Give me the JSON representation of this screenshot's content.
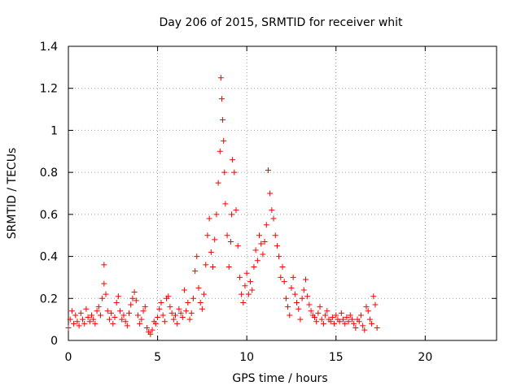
{
  "chart_data": {
    "type": "scatter",
    "title": "Day 206 of 2015, SRMTID for receiver whit",
    "xlabel": "GPS time / hours",
    "ylabel": "SRMTID / TECUs",
    "xlim": [
      0,
      24
    ],
    "ylim": [
      0,
      1.4
    ],
    "xticks": [
      0,
      5,
      10,
      15,
      20
    ],
    "xtick_labels": [
      "0",
      "5",
      "10",
      "15",
      "20"
    ],
    "yticks": [
      0,
      0.2,
      0.4,
      0.6,
      0.8,
      1.0,
      1.2,
      1.4
    ],
    "ytick_labels": [
      "0",
      "0.2",
      "0.4",
      "0.6",
      "0.8",
      "1",
      "1.2",
      "1.4"
    ],
    "grid": true,
    "marker": "+",
    "series": [
      {
        "name": "SRMTID",
        "color": "#ff0000",
        "x": [
          0.0,
          0.1,
          0.2,
          0.3,
          0.4,
          0.5,
          0.6,
          0.7,
          0.8,
          0.9,
          1.0,
          1.1,
          1.2,
          1.3,
          1.4,
          1.5,
          1.6,
          1.7,
          1.8,
          1.9,
          2.0,
          2.0,
          2.1,
          2.2,
          2.3,
          2.4,
          2.5,
          2.6,
          2.7,
          2.8,
          2.9,
          3.0,
          3.1,
          3.2,
          3.3,
          3.4,
          3.5,
          3.6,
          3.7,
          3.8,
          3.9,
          4.0,
          4.1,
          4.2,
          4.3,
          4.4,
          4.5,
          4.6,
          4.7,
          4.8,
          4.9,
          5.0,
          5.1,
          5.2,
          5.3,
          5.4,
          5.5,
          5.6,
          5.7,
          5.8,
          5.9,
          6.0,
          6.1,
          6.2,
          6.3,
          6.4,
          6.5,
          6.6,
          6.7,
          6.8,
          6.9,
          7.0,
          7.1,
          7.2,
          7.3,
          7.4,
          7.5,
          7.6,
          7.7,
          7.8,
          7.9,
          8.0,
          8.1,
          8.2,
          8.3,
          8.4,
          8.5,
          8.55,
          8.6,
          8.65,
          8.7,
          8.75,
          8.8,
          8.9,
          9.0,
          9.1,
          9.15,
          9.2,
          9.3,
          9.4,
          9.5,
          9.6,
          9.7,
          9.8,
          9.9,
          10.0,
          10.1,
          10.2,
          10.3,
          10.4,
          10.5,
          10.6,
          10.7,
          10.8,
          10.9,
          11.0,
          11.1,
          11.2,
          11.3,
          11.4,
          11.5,
          11.6,
          11.7,
          11.8,
          11.9,
          12.0,
          12.1,
          12.2,
          12.3,
          12.4,
          12.5,
          12.6,
          12.7,
          12.8,
          12.9,
          13.0,
          13.1,
          13.2,
          13.3,
          13.4,
          13.5,
          13.6,
          13.7,
          13.8,
          13.9,
          14.0,
          14.1,
          14.2,
          14.3,
          14.4,
          14.5,
          14.6,
          14.7,
          14.8,
          14.9,
          15.0,
          15.1,
          15.2,
          15.3,
          15.4,
          15.5,
          15.6,
          15.7,
          15.8,
          15.9,
          16.0,
          16.1,
          16.2,
          16.3,
          16.4,
          16.5,
          16.6,
          16.7,
          16.8,
          16.9,
          17.0,
          17.1,
          17.2,
          17.3
        ],
        "y": [
          0.06,
          0.1,
          0.14,
          0.08,
          0.12,
          0.09,
          0.07,
          0.13,
          0.1,
          0.08,
          0.15,
          0.11,
          0.09,
          0.12,
          0.1,
          0.08,
          0.14,
          0.16,
          0.12,
          0.2,
          0.36,
          0.27,
          0.22,
          0.14,
          0.1,
          0.13,
          0.08,
          0.11,
          0.18,
          0.21,
          0.14,
          0.1,
          0.12,
          0.09,
          0.07,
          0.13,
          0.17,
          0.2,
          0.23,
          0.19,
          0.12,
          0.08,
          0.1,
          0.14,
          0.16,
          0.06,
          0.04,
          0.03,
          0.05,
          0.09,
          0.08,
          0.11,
          0.15,
          0.18,
          0.12,
          0.09,
          0.2,
          0.21,
          0.16,
          0.13,
          0.1,
          0.12,
          0.08,
          0.15,
          0.13,
          0.11,
          0.24,
          0.14,
          0.18,
          0.1,
          0.13,
          0.2,
          0.33,
          0.4,
          0.25,
          0.18,
          0.15,
          0.22,
          0.36,
          0.5,
          0.58,
          0.42,
          0.35,
          0.48,
          0.6,
          0.75,
          0.9,
          1.25,
          1.15,
          1.05,
          0.95,
          0.8,
          0.65,
          0.5,
          0.35,
          0.47,
          0.6,
          0.86,
          0.8,
          0.62,
          0.45,
          0.3,
          0.22,
          0.18,
          0.26,
          0.32,
          0.22,
          0.28,
          0.24,
          0.35,
          0.43,
          0.38,
          0.5,
          0.46,
          0.41,
          0.47,
          0.55,
          0.81,
          0.7,
          0.62,
          0.58,
          0.5,
          0.45,
          0.4,
          0.3,
          0.35,
          0.28,
          0.2,
          0.16,
          0.12,
          0.25,
          0.3,
          0.22,
          0.18,
          0.15,
          0.1,
          0.2,
          0.24,
          0.29,
          0.21,
          0.17,
          0.14,
          0.12,
          0.11,
          0.09,
          0.13,
          0.16,
          0.1,
          0.08,
          0.12,
          0.14,
          0.1,
          0.09,
          0.11,
          0.08,
          0.12,
          0.1,
          0.09,
          0.13,
          0.1,
          0.08,
          0.11,
          0.09,
          0.12,
          0.1,
          0.08,
          0.06,
          0.1,
          0.09,
          0.12,
          0.07,
          0.05,
          0.16,
          0.14,
          0.1,
          0.08,
          0.21,
          0.17,
          0.06
        ]
      }
    ]
  }
}
